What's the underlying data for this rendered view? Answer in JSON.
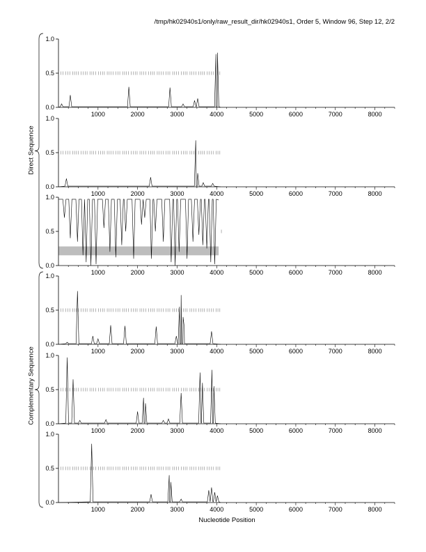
{
  "title": "/tmp/hk02940s1/only/raw_result_dir/hk02940s1, Order 5, Window 96, Step 12, 2/2",
  "xlabel": "Nucleotide Position",
  "group_labels": {
    "direct": "Direct Sequence",
    "complementary": "Complementary Sequence"
  },
  "chart_data": [
    {
      "type": "line",
      "name": "",
      "xlim": [
        0,
        8500
      ],
      "ylim": [
        0,
        1
      ],
      "x_ticks": [
        1000,
        2000,
        3000,
        4000,
        5000,
        6000,
        7000,
        8000
      ],
      "y_ticks": [
        "0.0",
        "0.5",
        "1.0"
      ],
      "peaks": [
        [
          80,
          0.05
        ],
        [
          300,
          0.18
        ],
        [
          1780,
          0.3
        ],
        [
          2820,
          0.29
        ],
        [
          3150,
          0.05
        ],
        [
          3440,
          0.1
        ],
        [
          3520,
          0.13
        ],
        [
          3980,
          0.78
        ],
        [
          4020,
          0.8
        ]
      ],
      "marker_range": [
        60,
        4100
      ],
      "marker_y": 0.5
    },
    {
      "type": "line",
      "name": "",
      "xlim": [
        0,
        8500
      ],
      "ylim": [
        0,
        1
      ],
      "x_ticks": [
        1000,
        2000,
        3000,
        4000,
        5000,
        6000,
        7000,
        8000
      ],
      "y_ticks": [
        "0.0",
        "0.5",
        "1.0"
      ],
      "peaks": [
        [
          200,
          0.12
        ],
        [
          2330,
          0.14
        ],
        [
          3470,
          0.68
        ],
        [
          3520,
          0.2
        ],
        [
          3660,
          0.06
        ],
        [
          3900,
          0.05
        ]
      ],
      "marker_range": [
        60,
        4100
      ],
      "marker_y": 0.5
    },
    {
      "type": "line",
      "name": "",
      "xlim": [
        0,
        8500
      ],
      "ylim": [
        0,
        1
      ],
      "x_ticks": [
        1000,
        2000,
        3000,
        4000,
        5000,
        6000,
        7000,
        8000
      ],
      "y_ticks": [
        "0.0",
        "0.5",
        "1.0"
      ],
      "band": [
        0.15,
        0.28
      ],
      "band_x": [
        0,
        4050
      ],
      "dips": [
        [
          150,
          0.7
        ],
        [
          300,
          0.4
        ],
        [
          480,
          0.35
        ],
        [
          620,
          0.15
        ],
        [
          700,
          0.05
        ],
        [
          820,
          0.0
        ],
        [
          950,
          0.02
        ],
        [
          1150,
          0.55
        ],
        [
          1300,
          0.2
        ],
        [
          1450,
          0.12
        ],
        [
          1600,
          0.3
        ],
        [
          1700,
          0.5
        ],
        [
          1900,
          0.1
        ],
        [
          2100,
          0.6
        ],
        [
          2180,
          0.7
        ],
        [
          2350,
          0.1
        ],
        [
          2450,
          0.5
        ],
        [
          2650,
          0.35
        ],
        [
          2850,
          0.05
        ],
        [
          2950,
          0.0
        ],
        [
          3050,
          0.2
        ],
        [
          3250,
          0.1
        ],
        [
          3400,
          0.35
        ],
        [
          3550,
          0.45
        ],
        [
          3650,
          0.3
        ],
        [
          3750,
          0.25
        ],
        [
          3850,
          0.05
        ],
        [
          3950,
          0.02
        ]
      ],
      "marker_range": [
        4100,
        4150
      ],
      "marker_y": 0.5
    },
    {
      "type": "line",
      "name": "",
      "xlim": [
        0,
        8500
      ],
      "ylim": [
        0,
        1
      ],
      "x_ticks": [
        1000,
        2000,
        3000,
        4000,
        5000,
        6000,
        7000,
        8000
      ],
      "y_ticks": [
        "0.0",
        "0.5",
        "1.0"
      ],
      "peaks": [
        [
          220,
          0.03
        ],
        [
          480,
          0.78
        ],
        [
          870,
          0.12
        ],
        [
          1000,
          0.08
        ],
        [
          1320,
          0.28
        ],
        [
          1680,
          0.27
        ],
        [
          2470,
          0.26
        ],
        [
          2980,
          0.12
        ],
        [
          3060,
          0.55
        ],
        [
          3100,
          0.72
        ],
        [
          3150,
          0.4
        ],
        [
          3180,
          0.25
        ],
        [
          3870,
          0.19
        ]
      ],
      "marker_range": [
        60,
        4100
      ],
      "marker_y": 0.5
    },
    {
      "type": "line",
      "name": "",
      "xlim": [
        0,
        8500
      ],
      "ylim": [
        0,
        1
      ],
      "x_ticks": [
        1000,
        2000,
        3000,
        4000,
        5000,
        6000,
        7000,
        8000
      ],
      "y_ticks": [
        "0.0",
        "0.5",
        "1.0"
      ],
      "peaks": [
        [
          220,
          0.97
        ],
        [
          370,
          0.65
        ],
        [
          540,
          0.05
        ],
        [
          1200,
          0.06
        ],
        [
          2000,
          0.18
        ],
        [
          2150,
          0.38
        ],
        [
          2200,
          0.3
        ],
        [
          2650,
          0.05
        ],
        [
          2780,
          0.07
        ],
        [
          3100,
          0.45
        ],
        [
          3580,
          0.75
        ],
        [
          3640,
          0.6
        ],
        [
          3880,
          0.79
        ],
        [
          3930,
          0.55
        ]
      ],
      "marker_range": [
        60,
        4100
      ],
      "marker_y": 0.5
    },
    {
      "type": "line",
      "name": "",
      "xlim": [
        0,
        8500
      ],
      "ylim": [
        0,
        1
      ],
      "x_ticks": [
        1000,
        2000,
        3000,
        4000,
        5000,
        6000,
        7000,
        8000
      ],
      "y_ticks": [
        "0.0",
        "0.5",
        "1.0"
      ],
      "peaks": [
        [
          840,
          0.86
        ],
        [
          2340,
          0.12
        ],
        [
          2800,
          0.4
        ],
        [
          2840,
          0.3
        ],
        [
          3100,
          0.05
        ],
        [
          3800,
          0.18
        ],
        [
          3870,
          0.22
        ],
        [
          3950,
          0.15
        ],
        [
          4020,
          0.1
        ]
      ],
      "marker_range": [
        60,
        4100
      ],
      "marker_y": 0.5
    }
  ]
}
